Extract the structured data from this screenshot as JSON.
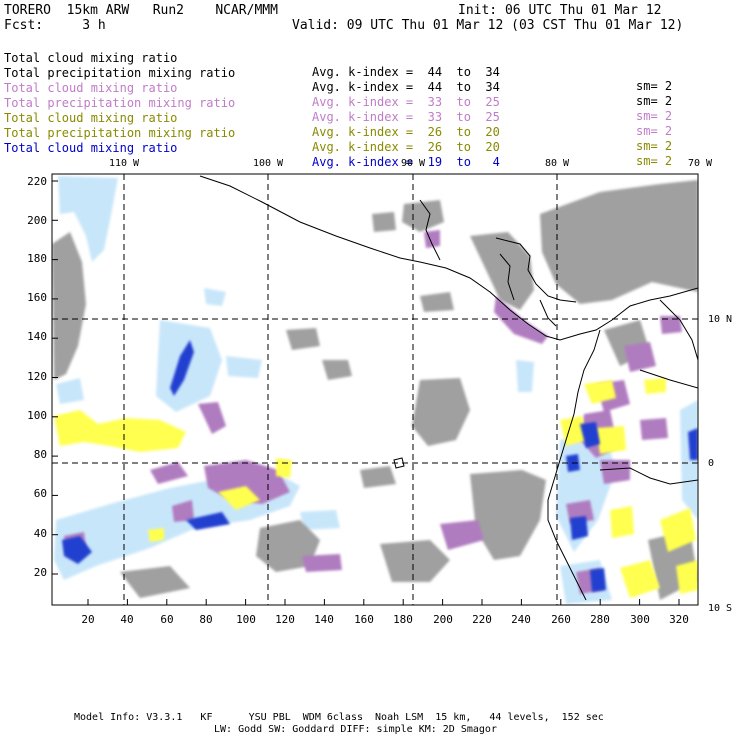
{
  "header": {
    "left_line1": "TORERO  15km ARW   Run2    NCAR/MMM",
    "right_line1": "Init: 06 UTC Thu 01 Mar 12",
    "left_line2": "Fcst:     3 h",
    "right_line2": "Valid: 09 UTC Thu 01 Mar 12 (03 CST Thu 01 Mar 12)"
  },
  "fields": [
    {
      "name": "Total cloud mixing ratio",
      "kindex": "Avg. k-index =  44  to  34",
      "sm": "sm= 2",
      "color": "#000000"
    },
    {
      "name": "Total precipitation mixing ratio",
      "kindex": "Avg. k-index =  44  to  34",
      "sm": "sm= 2",
      "color": "#000000"
    },
    {
      "name": "Total cloud mixing ratio",
      "kindex": "Avg. k-index =  33  to  25",
      "sm": "sm= 2",
      "color": "#c07cc8"
    },
    {
      "name": "Total precipitation mixing ratio",
      "kindex": "Avg. k-index =  33  to  25",
      "sm": "sm= 2",
      "color": "#c07cc8"
    },
    {
      "name": "Total cloud mixing ratio",
      "kindex": "Avg. k-index =  26  to  20",
      "sm": "sm= 2",
      "color": "#8a8a00"
    },
    {
      "name": "Total precipitation mixing ratio",
      "kindex": "Avg. k-index =  26  to  20",
      "sm": "sm= 2",
      "color": "#8a8a00"
    },
    {
      "name": "Total cloud mixing ratio",
      "kindex": "Avg. k-index =  19  to   4",
      "sm": "",
      "color": "#0000cc"
    }
  ],
  "top_lon_labels": [
    "110 W",
    "100 W",
    "90 W",
    "80 W",
    "70 W"
  ],
  "right_lat_labels": [
    "10 N",
    "0",
    "10 S"
  ],
  "y_axis_ticks": [
    "220",
    "200",
    "180",
    "160",
    "140",
    "120",
    "100",
    "80",
    "60",
    "40",
    "20"
  ],
  "x_axis_ticks": [
    "20",
    "40",
    "60",
    "80",
    "100",
    "120",
    "140",
    "160",
    "180",
    "200",
    "220",
    "240",
    "260",
    "280",
    "300",
    "320"
  ],
  "colors": {
    "gray": "#a0a0a0",
    "purple": "#b07cc0",
    "yellow": "#ffff50",
    "lightblue": "#c8e6fa",
    "blue": "#2040d0",
    "coast": "#000000"
  },
  "footer": {
    "line1": "Model Info: V3.3.1   KF      YSU PBL  WDM 6class  Noah LSM  15 km,   44 levels,  152 sec",
    "line2": "LW: Godd SW: Goddard DIFF: simple KM: 2D Smagor"
  }
}
